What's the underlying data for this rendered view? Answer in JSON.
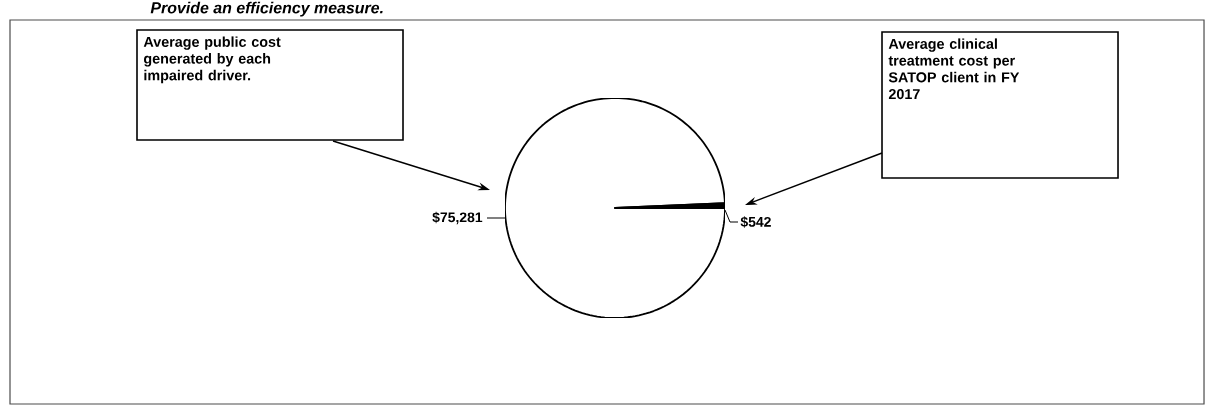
{
  "chart_data": {
    "type": "pie",
    "title": "Provide an efficiency measure.",
    "categories": [
      null,
      null
    ],
    "values": [
      75281,
      542
    ],
    "colors": [
      "#ffffff",
      "#000000"
    ],
    "value_labels": [
      "$75,281",
      "$542"
    ],
    "annotations": [
      "Average public cost generated by each impaired driver.",
      "Average clinical treatment cost per SATOP client in FY 2017"
    ]
  }
}
